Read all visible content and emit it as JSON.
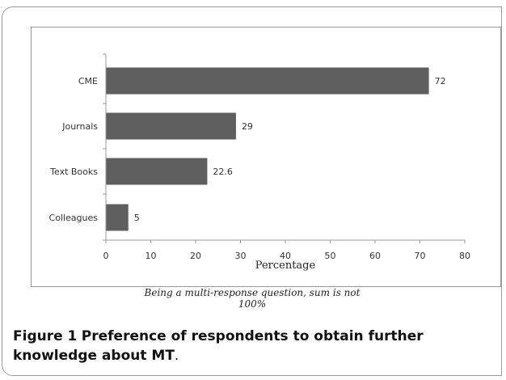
{
  "chart_data": {
    "type": "bar",
    "orientation": "horizontal",
    "categories": [
      "CME",
      "Journals",
      "Text Books",
      "Colleagues"
    ],
    "values": [
      72,
      29,
      22.6,
      5
    ],
    "data_labels": [
      "72",
      "29",
      "22.6",
      "5"
    ],
    "xlabel": "Percentage",
    "xlim": [
      0,
      80
    ],
    "xticks": [
      0,
      10,
      20,
      30,
      40,
      50,
      60,
      70,
      80
    ],
    "grid": false,
    "bar_color": "#5f5f5f"
  },
  "note": "Being a multi-response question, sum is not 100%",
  "caption": {
    "label": "Figure 1",
    "title": "Preference of respondents to obtain further knowledge about MT",
    "end": "."
  }
}
